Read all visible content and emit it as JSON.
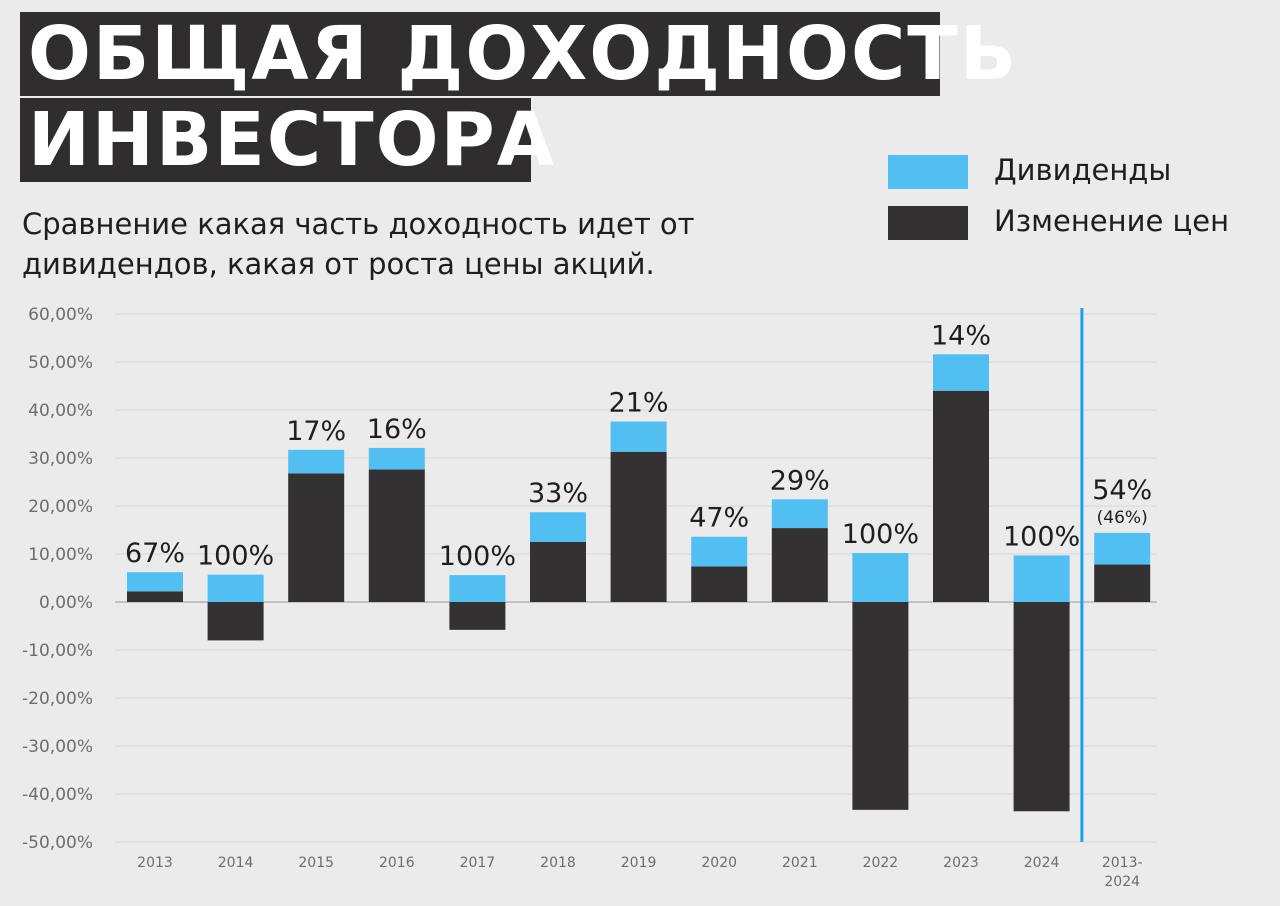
{
  "title": {
    "line1": "ОБЩАЯ ДОХОДНОСТЬ",
    "line2": "ИНВЕСТОРА"
  },
  "subtitle": "Сравнение какая часть доходность идет от дивидендов, какая от роста цены акций.",
  "legend": {
    "dividends": "Дивиденды",
    "price": "Изменение цен"
  },
  "colors": {
    "dividends": "#52bff2",
    "price": "#333132",
    "divider": "#1aa3e8",
    "title_bg": "#2f2d2e"
  },
  "chart_data": {
    "type": "bar",
    "stacked": true,
    "ylim": [
      -50,
      60
    ],
    "ytick_step": 10,
    "ytick_labels": [
      "60,00%",
      "50,00%",
      "40,00%",
      "30,00%",
      "20,00%",
      "10,00%",
      "0,00%",
      "-10,00%",
      "-20,00%",
      "-30,00%",
      "-40,00%",
      "-50,00%"
    ],
    "ytick_values": [
      60,
      50,
      40,
      30,
      20,
      10,
      0,
      -10,
      -20,
      -30,
      -40,
      -50
    ],
    "categories": [
      "2013",
      "2014",
      "2015",
      "2016",
      "2017",
      "2018",
      "2019",
      "2020",
      "2021",
      "2022",
      "2023",
      "2024",
      "2013-\n2024"
    ],
    "category_lines": [
      [
        "2013"
      ],
      [
        "2014"
      ],
      [
        "2015"
      ],
      [
        "2016"
      ],
      [
        "2017"
      ],
      [
        "2018"
      ],
      [
        "2019"
      ],
      [
        "2020"
      ],
      [
        "2021"
      ],
      [
        "2022"
      ],
      [
        "2023"
      ],
      [
        "2024"
      ],
      [
        "2013-",
        "2024"
      ]
    ],
    "series": [
      {
        "name": "Изменение цен",
        "values": [
          2.2,
          -8.0,
          26.8,
          27.6,
          -5.8,
          12.5,
          31.3,
          7.4,
          15.4,
          -43.3,
          44.0,
          -43.6,
          7.8
        ]
      },
      {
        "name": "Дивиденды",
        "values": [
          4.0,
          5.7,
          4.9,
          4.5,
          5.6,
          6.2,
          6.3,
          6.2,
          6.0,
          10.2,
          7.6,
          9.7,
          6.6
        ]
      }
    ],
    "dividend_share_labels": [
      "67%",
      "100%",
      "17%",
      "16%",
      "100%",
      "33%",
      "21%",
      "47%",
      "29%",
      "100%",
      "14%",
      "100%",
      "54%"
    ],
    "extra_label": "(46%)",
    "divider_after_category": "2024",
    "grid": true
  }
}
